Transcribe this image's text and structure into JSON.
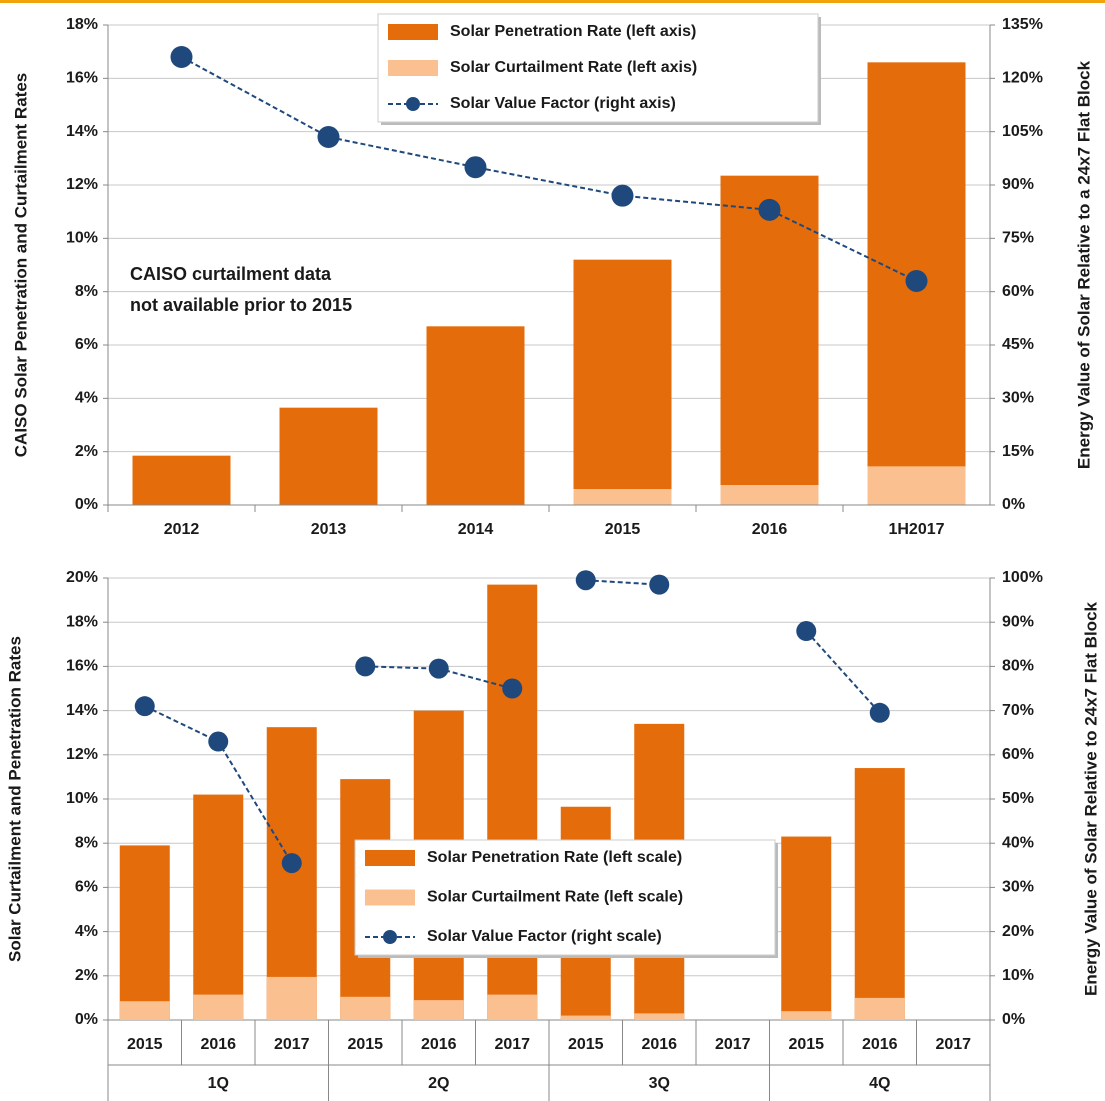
{
  "chart_data": [
    {
      "type": "bar-line",
      "ylabel": "CAISO Solar Penetration and Curtailment Rates",
      "y2label": "Energy Value of Solar Relative to a 24x7 Flat Block",
      "annotation": [
        "CAISO curtailment data",
        "not available prior to 2015"
      ],
      "categories": [
        "2012",
        "2013",
        "2014",
        "2015",
        "2016",
        "1H2017"
      ],
      "series": [
        {
          "name": "Solar Penetration Rate (left axis)",
          "color": "#e46c0a",
          "values": [
            1.85,
            3.65,
            6.7,
            9.2,
            12.35,
            16.6
          ]
        },
        {
          "name": "Solar Curtailment Rate (left axis)",
          "color": "#fac090",
          "values": [
            null,
            null,
            null,
            0.6,
            0.75,
            1.45
          ]
        },
        {
          "name": "Solar Value Factor (right axis)",
          "color": "#1f497d",
          "axis": "y2",
          "values": [
            126,
            103.5,
            95,
            87,
            83,
            63
          ]
        }
      ],
      "ylim": [
        0,
        18
      ],
      "yticks": [
        {
          "value": 0,
          "label": "0%"
        },
        {
          "value": 2,
          "label": "2%"
        },
        {
          "value": 4,
          "label": "4%"
        },
        {
          "value": 6,
          "label": "6%"
        },
        {
          "value": 8,
          "label": "8%"
        },
        {
          "value": 10,
          "label": "10%"
        },
        {
          "value": 12,
          "label": "12%"
        },
        {
          "value": 14,
          "label": "14%"
        },
        {
          "value": 16,
          "label": "16%"
        },
        {
          "value": 18,
          "label": "18%"
        }
      ],
      "y2lim": [
        0,
        135
      ],
      "y2ticks": [
        {
          "value": 0,
          "label": "0%"
        },
        {
          "value": 15,
          "label": "15%"
        },
        {
          "value": 30,
          "label": "30%"
        },
        {
          "value": 45,
          "label": "45%"
        },
        {
          "value": 60,
          "label": "60%"
        },
        {
          "value": 75,
          "label": "75%"
        },
        {
          "value": 90,
          "label": "90%"
        },
        {
          "value": 105,
          "label": "105%"
        },
        {
          "value": 120,
          "label": "120%"
        },
        {
          "value": 135,
          "label": "135%"
        }
      ],
      "grid": true
    },
    {
      "type": "grouped-bar-line",
      "ylabel": "Solar Curtailment and Penetration Rates",
      "y2label": "Energy Value of Solar Relative to 24x7 Flat Block",
      "groups": [
        {
          "label": "1Q",
          "categories": [
            "2015",
            "2016",
            "2017"
          ]
        },
        {
          "label": "2Q",
          "categories": [
            "2015",
            "2016",
            "2017"
          ]
        },
        {
          "label": "3Q",
          "categories": [
            "2015",
            "2016",
            "2017"
          ]
        },
        {
          "label": "4Q",
          "categories": [
            "2015",
            "2016",
            "2017"
          ]
        }
      ],
      "series": [
        {
          "name": "Solar Penetration Rate (left scale)",
          "color": "#e46c0a",
          "values": [
            [
              7.9,
              10.2,
              13.25
            ],
            [
              10.9,
              14.0,
              19.7
            ],
            [
              9.65,
              13.4,
              null
            ],
            [
              8.3,
              11.4,
              null
            ]
          ]
        },
        {
          "name": "Solar Curtailment Rate (left scale)",
          "color": "#fac090",
          "values": [
            [
              0.85,
              1.15,
              1.95
            ],
            [
              1.05,
              0.9,
              1.15
            ],
            [
              0.2,
              0.3,
              null
            ],
            [
              0.4,
              1.0,
              null
            ]
          ]
        },
        {
          "name": "Solar Value Factor (right scale)",
          "color": "#1f497d",
          "axis": "y2",
          "values": [
            [
              71,
              63,
              35.5
            ],
            [
              80,
              79.5,
              75
            ],
            [
              99.5,
              98.5,
              null
            ],
            [
              88,
              69.5,
              null
            ]
          ]
        }
      ],
      "ylim": [
        0,
        20
      ],
      "yticks": [
        {
          "value": 0,
          "label": "0%"
        },
        {
          "value": 2,
          "label": "2%"
        },
        {
          "value": 4,
          "label": "4%"
        },
        {
          "value": 6,
          "label": "6%"
        },
        {
          "value": 8,
          "label": "8%"
        },
        {
          "value": 10,
          "label": "10%"
        },
        {
          "value": 12,
          "label": "12%"
        },
        {
          "value": 14,
          "label": "14%"
        },
        {
          "value": 16,
          "label": "16%"
        },
        {
          "value": 18,
          "label": "18%"
        },
        {
          "value": 20,
          "label": "20%"
        }
      ],
      "y2lim": [
        0,
        100
      ],
      "y2ticks": [
        {
          "value": 0,
          "label": "0%"
        },
        {
          "value": 10,
          "label": "10%"
        },
        {
          "value": 20,
          "label": "20%"
        },
        {
          "value": 30,
          "label": "30%"
        },
        {
          "value": 40,
          "label": "40%"
        },
        {
          "value": 50,
          "label": "50%"
        },
        {
          "value": 60,
          "label": "60%"
        },
        {
          "value": 70,
          "label": "70%"
        },
        {
          "value": 80,
          "label": "80%"
        },
        {
          "value": 90,
          "label": "90%"
        },
        {
          "value": 100,
          "label": "100%"
        }
      ],
      "grid": true
    }
  ]
}
